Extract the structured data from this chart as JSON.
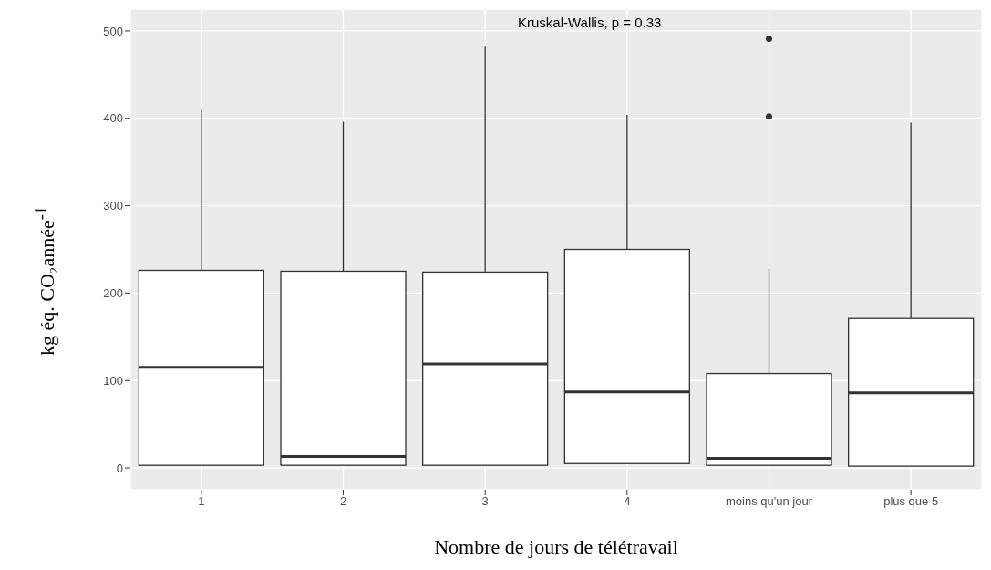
{
  "chart_data": {
    "type": "box",
    "xlabel": "Nombre de jours de télétravail",
    "ylabel": "kg éq. CO₂année$^{-1}$",
    "annotations": [
      "Kruskal-Wallis, p = 0.33"
    ],
    "categories": [
      "1",
      "2",
      "3",
      "4",
      "moins qu'un jour",
      "plus que 5"
    ],
    "boxes": [
      {
        "low": 3,
        "q1": 3,
        "median": 115,
        "q3": 226,
        "high": 410
      },
      {
        "low": 3,
        "q1": 3,
        "median": 13,
        "q3": 225,
        "high": 396
      },
      {
        "low": 3,
        "q1": 3,
        "median": 119,
        "q3": 224,
        "high": 483
      },
      {
        "low": 5,
        "q1": 5,
        "median": 87,
        "q3": 250,
        "high": 404
      },
      {
        "low": 3,
        "q1": 3,
        "median": 11,
        "q3": 108,
        "high": 228,
        "outliers": [
          402,
          491
        ]
      },
      {
        "low": 2,
        "q1": 2,
        "median": 86,
        "q3": 171,
        "high": 395
      }
    ],
    "ylim": [
      -25,
      525
    ],
    "yticks": [
      0,
      100,
      200,
      300,
      400,
      500
    ],
    "grid": true
  }
}
